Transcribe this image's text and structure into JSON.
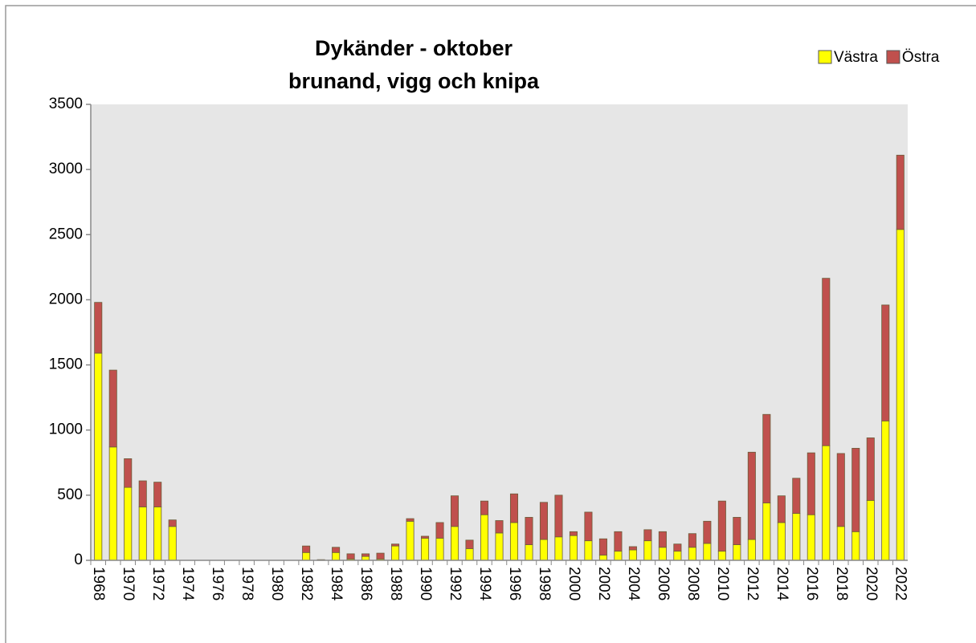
{
  "chart_data": {
    "type": "stacked_bar",
    "title": "Dykänder - oktober",
    "subtitle": "brunand, vigg och knipa",
    "categories": [
      "1968",
      null,
      "1970",
      null,
      "1972",
      null,
      "1974",
      null,
      "1976",
      null,
      "1978",
      null,
      "1980",
      null,
      "1982",
      null,
      "1984",
      null,
      "1986",
      null,
      "1988",
      null,
      "1990",
      null,
      "1992",
      null,
      "1994",
      null,
      "1996",
      null,
      "1998",
      null,
      "2000",
      null,
      "2002",
      null,
      "2004",
      null,
      "2006",
      null,
      "2008",
      null,
      "2010",
      null,
      "2012",
      null,
      "2014",
      null,
      "2016",
      null,
      "2018",
      null,
      "2020",
      null,
      "2022"
    ],
    "series": [
      {
        "name": "Västra",
        "color": "#ffff00",
        "values": [
          1590,
          870,
          560,
          410,
          410,
          260,
          0,
          0,
          0,
          0,
          0,
          0,
          0,
          0,
          60,
          0,
          60,
          10,
          30,
          10,
          110,
          300,
          170,
          170,
          260,
          90,
          350,
          210,
          290,
          120,
          160,
          180,
          190,
          150,
          40,
          70,
          80,
          150,
          100,
          70,
          100,
          130,
          70,
          120,
          160,
          440,
          290,
          360,
          350,
          880,
          260,
          220,
          460,
          1070,
          2540
        ]
      },
      {
        "name": "Östra",
        "color": "#c0504d",
        "values": [
          390,
          590,
          220,
          200,
          190,
          50,
          0,
          0,
          0,
          0,
          0,
          0,
          0,
          0,
          50,
          5,
          40,
          40,
          20,
          45,
          15,
          20,
          15,
          120,
          235,
          65,
          105,
          95,
          220,
          210,
          285,
          320,
          30,
          220,
          125,
          150,
          25,
          85,
          120,
          55,
          105,
          170,
          385,
          210,
          670,
          680,
          205,
          270,
          475,
          1285,
          560,
          640,
          480,
          890,
          570
        ]
      }
    ],
    "ylim": [
      0,
      3500
    ],
    "yticks": [
      0,
      500,
      1000,
      1500,
      2000,
      2500,
      3000,
      3500
    ],
    "grid": false,
    "legend": "top-right"
  }
}
